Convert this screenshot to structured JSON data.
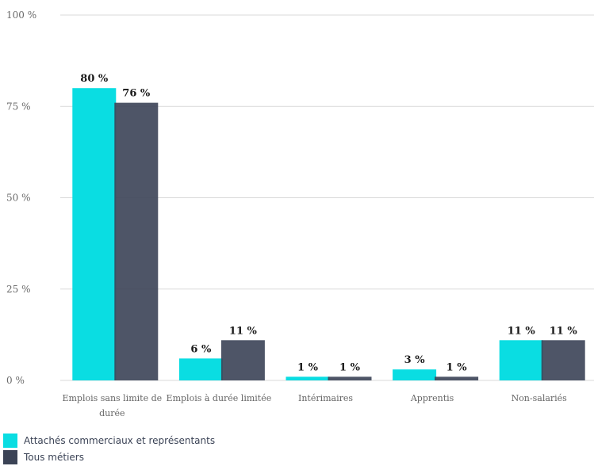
{
  "chart_data": {
    "type": "bar",
    "categories": [
      [
        "Emplois sans limite de",
        "durée"
      ],
      [
        "Emplois à durée limitée"
      ],
      [
        "Intérimaires"
      ],
      [
        "Apprentis"
      ],
      [
        "Non-salariés"
      ]
    ],
    "series": [
      {
        "name": "Attachés commerciaux et représentants",
        "color": "#0adde2",
        "values": [
          80,
          6,
          1,
          3,
          11
        ]
      },
      {
        "name": "Tous métiers",
        "color": "#3b4356",
        "values": [
          76,
          11,
          1,
          1,
          11
        ]
      }
    ],
    "value_labels": [
      [
        "80 %",
        "6 %",
        "1 %",
        "3 %",
        "11 %"
      ],
      [
        "76 %",
        "11 %",
        "1 %",
        "1 %",
        "11 %"
      ]
    ],
    "y_ticks": [
      {
        "value": 0,
        "label": "0 %"
      },
      {
        "value": 25,
        "label": "25 %"
      },
      {
        "value": 50,
        "label": "50 %"
      },
      {
        "value": 75,
        "label": "75 %"
      },
      {
        "value": 100,
        "label": "100 %"
      }
    ],
    "ylim": [
      0,
      100
    ],
    "grid": true,
    "legend_position": "bottom-left"
  }
}
